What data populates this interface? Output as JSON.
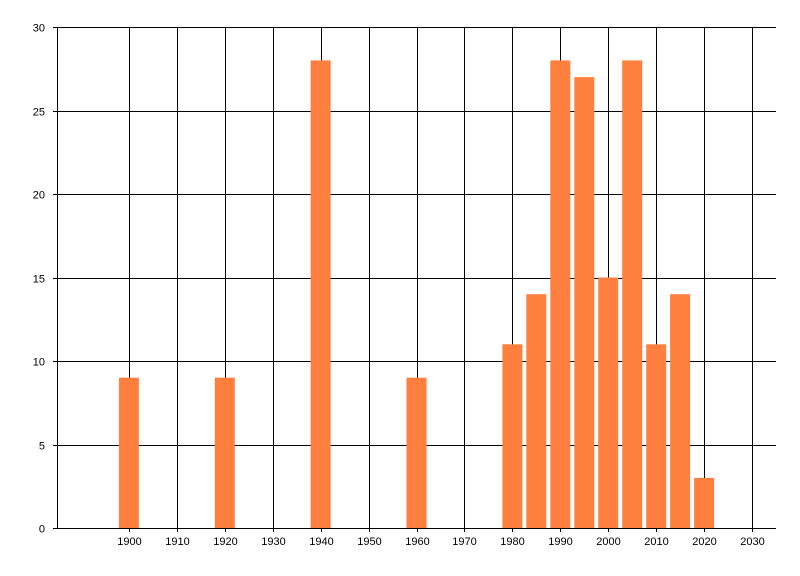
{
  "chart_data": {
    "type": "bar",
    "title": "",
    "xlabel": "",
    "ylabel": "",
    "x": [
      1900,
      1920,
      1940,
      1960,
      1980,
      1985,
      1990,
      1995,
      2000,
      2005,
      2010,
      2015,
      2020
    ],
    "values": [
      9,
      9,
      28,
      9,
      11,
      14,
      28,
      27,
      15,
      28,
      11,
      14,
      3
    ],
    "xlim": [
      1885,
      2035
    ],
    "ylim": [
      0,
      30
    ],
    "x_ticks": [
      1900,
      1910,
      1920,
      1930,
      1940,
      1950,
      1960,
      1970,
      1980,
      1990,
      2000,
      2010,
      2020,
      2030
    ],
    "y_ticks": [
      0,
      5,
      10,
      15,
      20,
      25,
      30
    ],
    "grid": true,
    "legend": "none",
    "colors": {
      "bar": "#ff7f3f",
      "grid": "#000000",
      "axis": "#000000",
      "background": "#ffffff"
    }
  }
}
